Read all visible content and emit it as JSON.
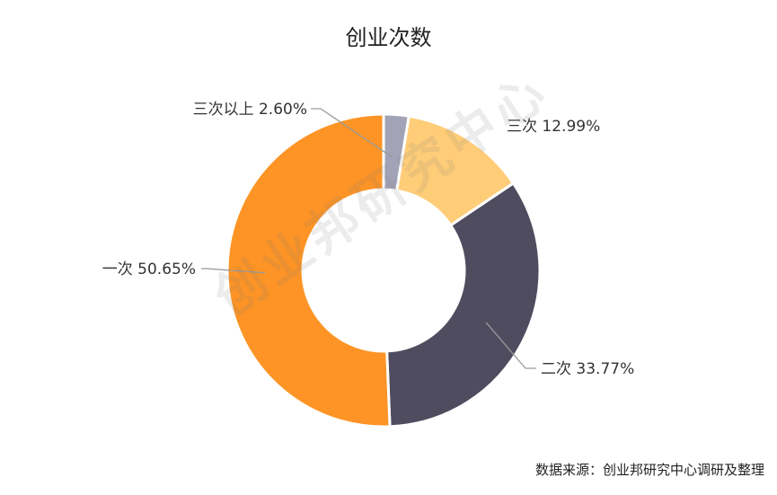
{
  "chart_data": {
    "type": "pie",
    "title": "创业次数",
    "donut": true,
    "slices": [
      {
        "label": "三次以上",
        "value": 2.6,
        "display": "三次以上 2.60%",
        "color": "#a3a3b8"
      },
      {
        "label": "三次",
        "value": 12.99,
        "display": "三次 12.99%",
        "color": "#ffcd78"
      },
      {
        "label": "二次",
        "value": 33.77,
        "display": "二次 33.77%",
        "color": "#4f4c5f"
      },
      {
        "label": "一次",
        "value": 50.65,
        "display": "一次 50.65%",
        "color": "#fd9425"
      }
    ]
  },
  "watermark": "创业邦研究中心",
  "source": "数据来源：创业邦研究中心调研及整理"
}
